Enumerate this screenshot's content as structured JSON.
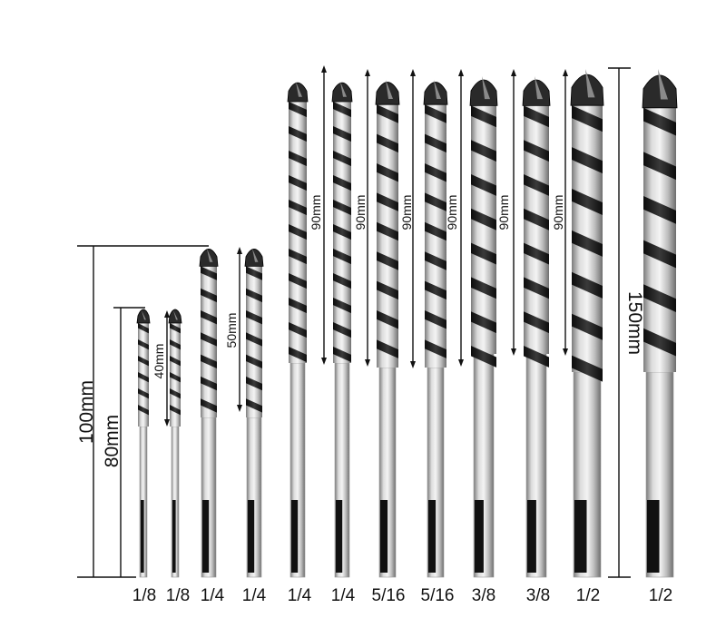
{
  "colors": {
    "line": "#111111",
    "flute": "#1b1b1b",
    "shank": "#c9c9c9",
    "shank_dark": "#8d8d8d"
  },
  "overall_dims": {
    "left_outer": "100mm",
    "left_inner": "80mm",
    "right": "150mm"
  },
  "flute_dims": {
    "d1": "40mm",
    "d2": "50mm",
    "d3": "90mm",
    "d4": "90mm",
    "d5": "90mm",
    "d6": "90mm",
    "d7": "90mm",
    "d8": "90mm"
  },
  "bits": [
    {
      "size": "1/8"
    },
    {
      "size": "1/8"
    },
    {
      "size": "1/4"
    },
    {
      "size": "1/4"
    },
    {
      "size": "1/4"
    },
    {
      "size": "1/4"
    },
    {
      "size": "5/16"
    },
    {
      "size": "5/16"
    },
    {
      "size": "3/8"
    },
    {
      "size": "3/8"
    },
    {
      "size": "1/2"
    },
    {
      "size": "1/2"
    }
  ]
}
